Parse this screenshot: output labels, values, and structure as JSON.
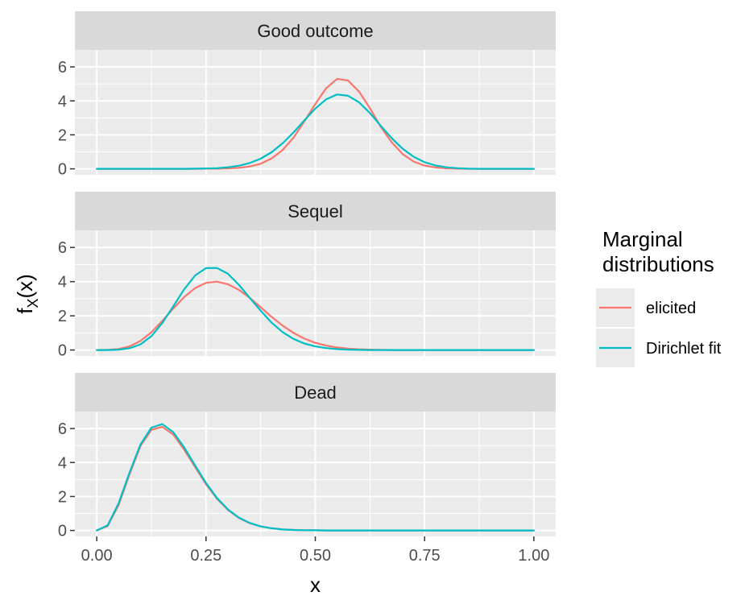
{
  "chart_data": {
    "type": "line",
    "xlabel": "x",
    "ylabel": "f",
    "ylabel_sub": "X",
    "ylabel_suffix": "(x)",
    "xlim": [
      -0.05,
      1.05
    ],
    "ylim": [
      -0.35,
      7.0
    ],
    "x_ticks": [
      0,
      0.25,
      0.5,
      0.75,
      1.0
    ],
    "x_tick_labels": [
      "0.00",
      "0.25",
      "0.50",
      "0.75",
      "1.00"
    ],
    "y_ticks": [
      0,
      2,
      4,
      6
    ],
    "y_tick_labels": [
      "0",
      "2",
      "4",
      "6"
    ],
    "grid": true,
    "legend": {
      "title_lines": [
        "Marginal",
        "distributions"
      ],
      "position": "right"
    },
    "series_styles": [
      {
        "name": "elicited",
        "color": "#F8766D"
      },
      {
        "name": "Dirichlet fit",
        "color": "#00BFC4"
      }
    ],
    "x": [
      0,
      0.025,
      0.05,
      0.075,
      0.1,
      0.125,
      0.15,
      0.175,
      0.2,
      0.225,
      0.25,
      0.275,
      0.3,
      0.325,
      0.35,
      0.375,
      0.4,
      0.425,
      0.45,
      0.475,
      0.5,
      0.525,
      0.55,
      0.575,
      0.6,
      0.625,
      0.65,
      0.675,
      0.7,
      0.725,
      0.75,
      0.775,
      0.8,
      0.825,
      0.85,
      0.875,
      0.9,
      0.925,
      0.95,
      0.975,
      1.0
    ],
    "panels": [
      {
        "strip": "Good outcome",
        "series": [
          {
            "name": "elicited",
            "values": [
              0,
              0,
              0,
              0,
              0,
              0,
              0,
              0,
              0,
              0,
              0.01,
              0.01,
              0.03,
              0.06,
              0.14,
              0.3,
              0.61,
              1.1,
              1.83,
              2.79,
              3.82,
              4.75,
              5.3,
              5.2,
              4.55,
              3.57,
              2.46,
              1.55,
              0.87,
              0.43,
              0.19,
              0.08,
              0.03,
              0.01,
              0,
              0,
              0,
              0,
              0,
              0,
              0
            ]
          },
          {
            "name": "Dirichlet fit",
            "values": [
              0,
              0,
              0,
              0,
              0,
              0,
              0,
              0,
              0,
              0.01,
              0.02,
              0.04,
              0.09,
              0.18,
              0.34,
              0.6,
              0.98,
              1.5,
              2.14,
              2.85,
              3.55,
              4.1,
              4.38,
              4.3,
              3.92,
              3.28,
              2.53,
              1.8,
              1.18,
              0.71,
              0.39,
              0.2,
              0.09,
              0.04,
              0.01,
              0,
              0,
              0,
              0,
              0,
              0
            ]
          }
        ]
      },
      {
        "strip": "Sequel",
        "series": [
          {
            "name": "elicited",
            "values": [
              0,
              0.01,
              0.06,
              0.21,
              0.53,
              1.04,
              1.7,
              2.42,
              3.1,
              3.62,
              3.93,
              4.0,
              3.85,
              3.52,
              3.05,
              2.5,
              1.94,
              1.43,
              1.0,
              0.67,
              0.42,
              0.26,
              0.15,
              0.08,
              0.04,
              0.02,
              0.01,
              0,
              0,
              0,
              0,
              0,
              0,
              0,
              0,
              0,
              0,
              0,
              0,
              0,
              0
            ]
          },
          {
            "name": "Dirichlet fit",
            "values": [
              0,
              0,
              0.02,
              0.1,
              0.33,
              0.81,
              1.58,
              2.55,
              3.55,
              4.36,
              4.79,
              4.8,
              4.46,
              3.82,
              3.05,
              2.3,
              1.6,
              1.05,
              0.65,
              0.38,
              0.21,
              0.11,
              0.05,
              0.02,
              0.01,
              0,
              0,
              0,
              0,
              0,
              0,
              0,
              0,
              0,
              0,
              0,
              0,
              0,
              0,
              0,
              0
            ]
          }
        ]
      },
      {
        "strip": "Dead",
        "series": [
          {
            "name": "elicited",
            "values": [
              0,
              0.26,
              1.5,
              3.3,
              4.97,
              5.93,
              6.1,
              5.65,
              4.75,
              3.73,
              2.72,
              1.87,
              1.21,
              0.74,
              0.43,
              0.24,
              0.13,
              0.06,
              0.03,
              0.01,
              0.01,
              0,
              0,
              0,
              0,
              0,
              0,
              0,
              0,
              0,
              0,
              0,
              0,
              0,
              0,
              0,
              0,
              0,
              0,
              0,
              0
            ]
          },
          {
            "name": "Dirichlet fit",
            "values": [
              0,
              0.3,
              1.6,
              3.4,
              5.06,
              6.05,
              6.26,
              5.79,
              4.89,
              3.83,
              2.79,
              1.91,
              1.24,
              0.76,
              0.44,
              0.24,
              0.13,
              0.06,
              0.03,
              0.01,
              0.01,
              0,
              0,
              0,
              0,
              0,
              0,
              0,
              0,
              0,
              0,
              0,
              0,
              0,
              0,
              0,
              0,
              0,
              0,
              0,
              0
            ]
          }
        ]
      }
    ]
  }
}
